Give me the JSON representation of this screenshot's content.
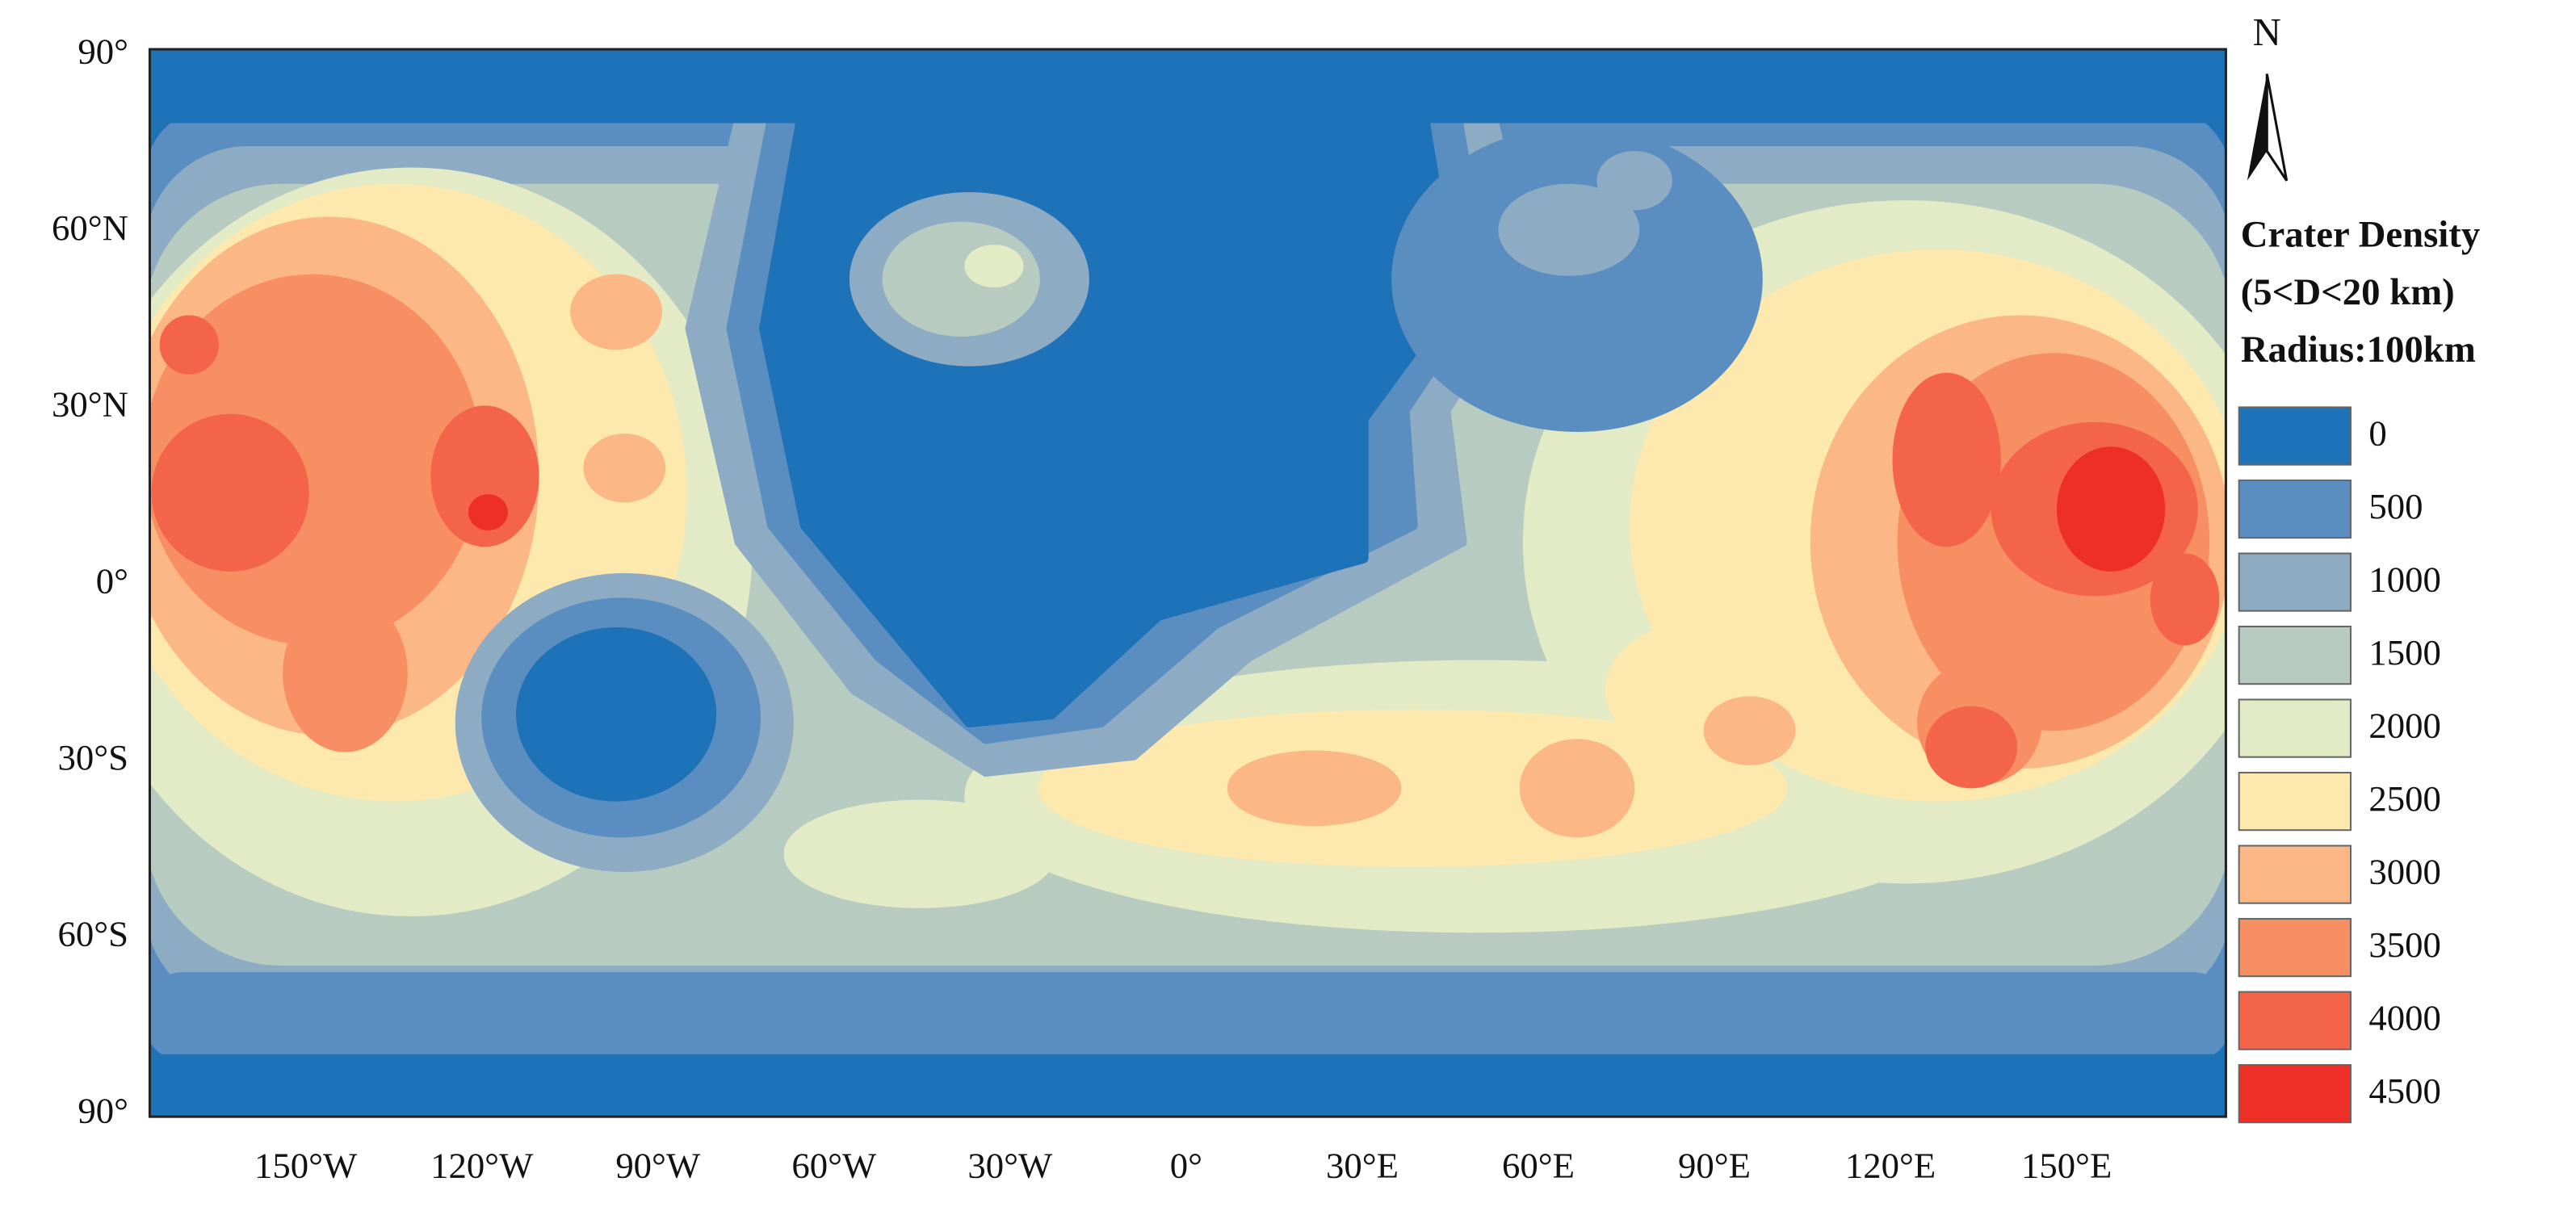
{
  "map": {
    "lat_ticks": [
      {
        "value": 90,
        "label": "90°"
      },
      {
        "value": 60,
        "label": "60°N"
      },
      {
        "value": 30,
        "label": "30°N"
      },
      {
        "value": 0,
        "label": "0°"
      },
      {
        "value": -30,
        "label": "30°S"
      },
      {
        "value": -60,
        "label": "60°S"
      },
      {
        "value": -90,
        "label": "90°"
      }
    ],
    "lon_ticks": [
      {
        "value": -150,
        "label": "150°W"
      },
      {
        "value": -120,
        "label": "120°W"
      },
      {
        "value": -90,
        "label": "90°W"
      },
      {
        "value": -60,
        "label": "60°W"
      },
      {
        "value": -30,
        "label": "30°W"
      },
      {
        "value": 0,
        "label": "0°"
      },
      {
        "value": 30,
        "label": "30°E"
      },
      {
        "value": 60,
        "label": "60°E"
      },
      {
        "value": 90,
        "label": "90°E"
      },
      {
        "value": 120,
        "label": "120°E"
      },
      {
        "value": 150,
        "label": "150°E"
      }
    ],
    "north_label": "N",
    "legend": {
      "title": [
        "Crater Density",
        "(5<D<20 km)",
        "Radius:100km"
      ],
      "items": [
        {
          "label": "0",
          "color": "#1e72b8"
        },
        {
          "label": "500",
          "color": "#5a8ec1"
        },
        {
          "label": "1000",
          "color": "#8eabc4"
        },
        {
          "label": "1500",
          "color": "#b8cbc0"
        },
        {
          "label": "2000",
          "color": "#e3eac6"
        },
        {
          "label": "2500",
          "color": "#fde8ad"
        },
        {
          "label": "3000",
          "color": "#fbb886"
        },
        {
          "label": "3500",
          "color": "#f78f63"
        },
        {
          "label": "4000",
          "color": "#f4644a"
        },
        {
          "label": "4500",
          "color": "#ee2f28"
        }
      ]
    }
  }
}
